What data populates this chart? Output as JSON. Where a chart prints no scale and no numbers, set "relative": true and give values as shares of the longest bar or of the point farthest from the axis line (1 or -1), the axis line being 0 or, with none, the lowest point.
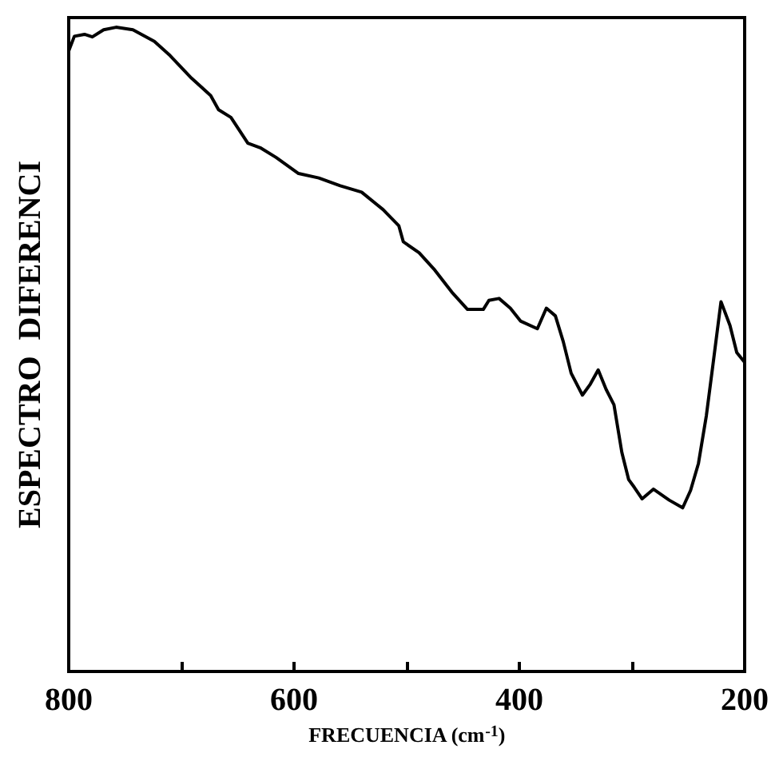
{
  "chart_data": {
    "type": "line",
    "relative": true,
    "xlabel": "FRECUENCIA (cm$^{-1}$)",
    "ylabel": "ESPECTRO  DIFERENCI",
    "xlim": [
      800,
      200
    ],
    "xticks": [
      800,
      {
        "value": 700,
        "label": null
      },
      600,
      {
        "value": 500,
        "label": null
      },
      400,
      {
        "value": 300,
        "label": null
      },
      200
    ],
    "grid": false,
    "marker": "none",
    "line_style": "solid",
    "x": [
      800,
      795,
      786,
      779,
      769,
      758,
      743,
      724,
      710,
      691,
      674,
      667,
      656,
      641,
      630,
      616,
      596,
      578,
      559,
      540,
      521,
      507,
      503,
      489,
      475,
      460,
      446,
      432,
      427,
      418,
      408,
      399,
      384,
      376,
      368,
      361,
      354,
      344,
      337,
      330,
      323,
      316,
      309,
      303,
      298,
      291,
      281,
      267,
      255,
      248,
      241,
      234,
      228,
      221,
      213,
      207,
      200
    ],
    "series": [
      {
        "color": "#000000",
        "values": [
          0.963,
          0.986,
          0.989,
          0.985,
          0.996,
          1.0,
          0.996,
          0.978,
          0.956,
          0.921,
          0.894,
          0.872,
          0.86,
          0.82,
          0.813,
          0.798,
          0.773,
          0.766,
          0.754,
          0.744,
          0.717,
          0.692,
          0.667,
          0.65,
          0.623,
          0.589,
          0.562,
          0.562,
          0.576,
          0.579,
          0.564,
          0.544,
          0.532,
          0.564,
          0.552,
          0.512,
          0.463,
          0.429,
          0.446,
          0.468,
          0.438,
          0.414,
          0.34,
          0.298,
          0.286,
          0.268,
          0.283,
          0.266,
          0.254,
          0.281,
          0.323,
          0.397,
          0.478,
          0.574,
          0.537,
          0.495,
          0.48
        ]
      }
    ]
  }
}
